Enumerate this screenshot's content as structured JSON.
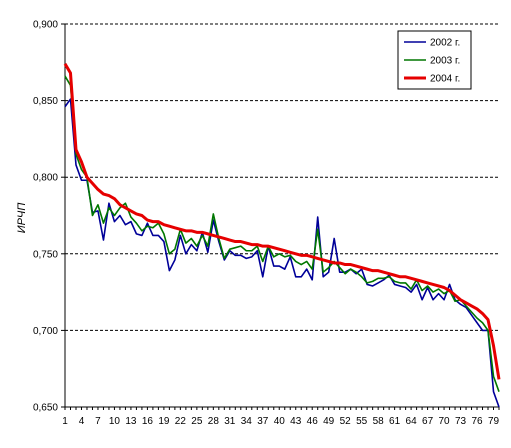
{
  "chart_data": {
    "type": "line",
    "title": "",
    "xlabel": "",
    "ylabel": "ИРЧП",
    "xlim": [
      1,
      80
    ],
    "ylim": [
      0.65,
      0.9
    ],
    "yticks": [
      "0,650",
      "0,700",
      "0,750",
      "0,800",
      "0,850",
      "0,900"
    ],
    "xticks": [
      "1",
      "4",
      "7",
      "10",
      "13",
      "16",
      "19",
      "22",
      "25",
      "28",
      "31",
      "34",
      "37",
      "40",
      "43",
      "46",
      "49",
      "52",
      "55",
      "58",
      "61",
      "64",
      "67",
      "70",
      "73",
      "76",
      "79"
    ],
    "grid": "horizontal dashed",
    "legend_position": "top-right",
    "series": [
      {
        "name": "2002 г.",
        "color": "#000099",
        "values": [
          0.846,
          0.851,
          0.808,
          0.798,
          0.798,
          0.777,
          0.778,
          0.759,
          0.783,
          0.771,
          0.775,
          0.769,
          0.771,
          0.763,
          0.762,
          0.77,
          0.762,
          0.762,
          0.758,
          0.739,
          0.746,
          0.762,
          0.75,
          0.756,
          0.752,
          0.764,
          0.751,
          0.772,
          0.758,
          0.746,
          0.752,
          0.749,
          0.749,
          0.747,
          0.748,
          0.752,
          0.735,
          0.755,
          0.742,
          0.742,
          0.74,
          0.748,
          0.735,
          0.735,
          0.74,
          0.733,
          0.774,
          0.735,
          0.738,
          0.76,
          0.738,
          0.738,
          0.74,
          0.737,
          0.74,
          0.73,
          0.729,
          0.731,
          0.733,
          0.736,
          0.73,
          0.729,
          0.728,
          0.725,
          0.73,
          0.72,
          0.728,
          0.72,
          0.724,
          0.72,
          0.73,
          0.72,
          0.717,
          0.715,
          0.71,
          0.705,
          0.7,
          0.7,
          0.66,
          0.65
        ]
      },
      {
        "name": "2003 г.",
        "color": "#007700",
        "values": [
          0.866,
          0.86,
          0.815,
          0.805,
          0.8,
          0.775,
          0.782,
          0.77,
          0.78,
          0.775,
          0.78,
          0.783,
          0.774,
          0.77,
          0.765,
          0.768,
          0.767,
          0.77,
          0.763,
          0.75,
          0.753,
          0.766,
          0.757,
          0.76,
          0.755,
          0.762,
          0.755,
          0.776,
          0.76,
          0.747,
          0.753,
          0.754,
          0.755,
          0.752,
          0.752,
          0.755,
          0.745,
          0.755,
          0.748,
          0.75,
          0.748,
          0.749,
          0.745,
          0.743,
          0.745,
          0.74,
          0.766,
          0.738,
          0.741,
          0.745,
          0.741,
          0.737,
          0.74,
          0.738,
          0.735,
          0.731,
          0.732,
          0.734,
          0.734,
          0.735,
          0.732,
          0.731,
          0.731,
          0.727,
          0.733,
          0.726,
          0.729,
          0.725,
          0.727,
          0.724,
          0.726,
          0.719,
          0.72,
          0.716,
          0.712,
          0.708,
          0.705,
          0.7,
          0.67,
          0.66
        ]
      },
      {
        "name": "2004 г.",
        "color": "#e60000",
        "values": [
          0.874,
          0.868,
          0.818,
          0.81,
          0.8,
          0.796,
          0.792,
          0.789,
          0.788,
          0.786,
          0.782,
          0.78,
          0.778,
          0.776,
          0.775,
          0.772,
          0.771,
          0.771,
          0.769,
          0.768,
          0.767,
          0.766,
          0.765,
          0.765,
          0.764,
          0.764,
          0.763,
          0.762,
          0.761,
          0.76,
          0.759,
          0.758,
          0.758,
          0.757,
          0.756,
          0.756,
          0.755,
          0.755,
          0.754,
          0.753,
          0.752,
          0.751,
          0.75,
          0.749,
          0.749,
          0.748,
          0.747,
          0.746,
          0.745,
          0.744,
          0.744,
          0.743,
          0.743,
          0.742,
          0.741,
          0.74,
          0.739,
          0.739,
          0.738,
          0.737,
          0.736,
          0.735,
          0.735,
          0.734,
          0.733,
          0.732,
          0.731,
          0.73,
          0.729,
          0.728,
          0.726,
          0.723,
          0.72,
          0.718,
          0.716,
          0.714,
          0.711,
          0.707,
          0.69,
          0.668
        ]
      }
    ]
  }
}
